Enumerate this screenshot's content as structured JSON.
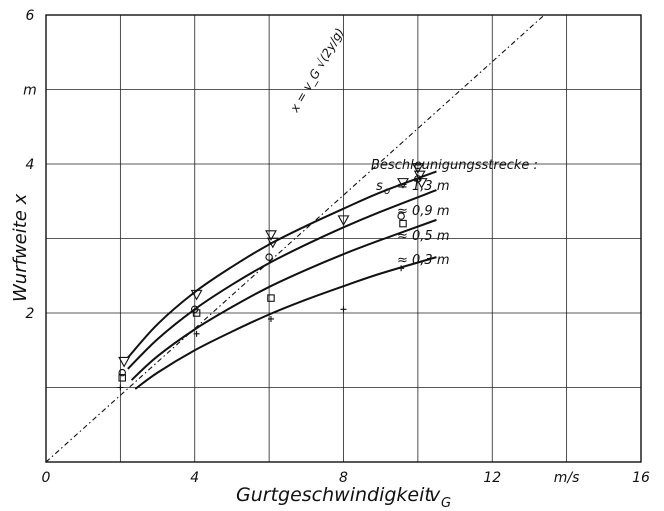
{
  "chart_data": {
    "type": "line",
    "xlabel": "Gurtgeschwindigkeit",
    "xlabel_symbol": "v",
    "xlabel_subscript": "G",
    "ylabel": "Wurfweite  x",
    "x_unit": "m/s",
    "y_unit": "m",
    "xlim": [
      0,
      16
    ],
    "ylim": [
      0,
      6
    ],
    "x_ticks": [
      "0",
      "4",
      "8",
      "12",
      "m/s",
      "16"
    ],
    "y_ticks": [
      "2",
      "4",
      "m",
      "6"
    ],
    "grid": true,
    "reference_line": {
      "label": "x = v_G √(2y/g)",
      "style": "dash-dot",
      "points": [
        [
          0,
          0
        ],
        [
          13.4,
          6
        ]
      ]
    },
    "legend": {
      "title": "Beschleunigungsstrecke :",
      "symbol": "s",
      "symbol_sub": "o",
      "placement": "right"
    },
    "series": [
      {
        "name": "s_o = 1,3 m",
        "label_prefix": "= 1,3 m",
        "marker": "triangle-down",
        "curve": [
          [
            2.2,
            1.4
          ],
          [
            3,
            1.85
          ],
          [
            4,
            2.28
          ],
          [
            5,
            2.62
          ],
          [
            6,
            2.92
          ],
          [
            7,
            3.17
          ],
          [
            8,
            3.4
          ],
          [
            9,
            3.62
          ],
          [
            10.5,
            3.9
          ]
        ],
        "points": [
          [
            2.1,
            1.35
          ],
          [
            4.05,
            2.25
          ],
          [
            6.05,
            3.05
          ],
          [
            6.1,
            2.95
          ],
          [
            8,
            3.25
          ],
          [
            9.6,
            3.75
          ],
          [
            10,
            3.95
          ],
          [
            10.05,
            3.85
          ],
          [
            10.1,
            3.75
          ]
        ]
      },
      {
        "name": "s_o = 0,9 m",
        "label_prefix": "≈ 0,9 m",
        "marker": "circle",
        "curve": [
          [
            2.2,
            1.25
          ],
          [
            3,
            1.65
          ],
          [
            4,
            2.05
          ],
          [
            5,
            2.38
          ],
          [
            6,
            2.67
          ],
          [
            7,
            2.92
          ],
          [
            8,
            3.15
          ],
          [
            9,
            3.36
          ],
          [
            10.5,
            3.65
          ]
        ],
        "points": [
          [
            2.05,
            1.2
          ],
          [
            4,
            2.05
          ],
          [
            6,
            2.75
          ],
          [
            9.55,
            3.3
          ],
          [
            10,
            3.8
          ]
        ]
      },
      {
        "name": "s_o = 0,5 m",
        "label_prefix": "≈ 0,5 m",
        "marker": "square",
        "curve": [
          [
            2.3,
            1.1
          ],
          [
            3,
            1.42
          ],
          [
            4,
            1.78
          ],
          [
            5,
            2.08
          ],
          [
            6,
            2.35
          ],
          [
            7,
            2.58
          ],
          [
            8,
            2.79
          ],
          [
            9,
            2.98
          ],
          [
            10.5,
            3.25
          ]
        ],
        "points": [
          [
            2.05,
            1.13
          ],
          [
            4.05,
            2.0
          ],
          [
            6.05,
            2.2
          ],
          [
            9.6,
            3.2
          ]
        ]
      },
      {
        "name": "s_o = 0,3 m",
        "label_prefix": "≈ 0,3 m",
        "marker": "plus",
        "curve": [
          [
            2.4,
            0.98
          ],
          [
            3,
            1.2
          ],
          [
            4,
            1.5
          ],
          [
            5,
            1.75
          ],
          [
            6,
            1.98
          ],
          [
            7,
            2.18
          ],
          [
            8,
            2.36
          ],
          [
            9,
            2.53
          ],
          [
            10.5,
            2.75
          ]
        ],
        "points": [
          [
            2.0,
            1.0
          ],
          [
            4.05,
            1.72
          ],
          [
            6.05,
            1.92
          ],
          [
            8,
            2.05
          ],
          [
            9.55,
            2.6
          ]
        ]
      }
    ]
  }
}
